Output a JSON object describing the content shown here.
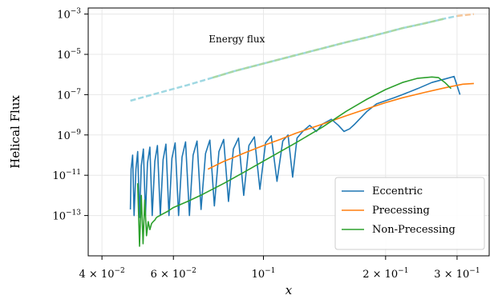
{
  "chart_data": {
    "type": "line",
    "xlabel": "x",
    "ylabel": "Helical Flux",
    "xscale": "log",
    "yscale": "log",
    "xlim": [
      0.037,
      0.36
    ],
    "ylim": [
      1e-15,
      0.002
    ],
    "grid": true,
    "legend_position": "bottom-right",
    "annotations": [
      {
        "text": "Energy flux",
        "x": 0.086,
        "y": 4e-05
      }
    ],
    "xticks": [
      {
        "value": 0.04,
        "base": "4 × 10",
        "exp": "−2"
      },
      {
        "value": 0.06,
        "base": "6 × 10",
        "exp": "−2"
      },
      {
        "value": 0.1,
        "base": "10",
        "exp": "−1"
      },
      {
        "value": 0.2,
        "base": "2 × 10",
        "exp": "−1"
      },
      {
        "value": 0.3,
        "base": "3 × 10",
        "exp": "−1"
      }
    ],
    "yticks": [
      {
        "value": 0.001,
        "base": "10",
        "exp": "−3"
      },
      {
        "value": 1e-05,
        "base": "10",
        "exp": "−5"
      },
      {
        "value": 1e-07,
        "base": "10",
        "exp": "−7"
      },
      {
        "value": 1e-09,
        "base": "10",
        "exp": "−9"
      },
      {
        "value": 1e-11,
        "base": "10",
        "exp": "−11"
      },
      {
        "value": 1e-13,
        "base": "10",
        "exp": "−13"
      }
    ],
    "series": [
      {
        "name": "Eccentric",
        "color": "#1f77b4",
        "style": "solid",
        "x": [
          0.047,
          0.0472,
          0.0476,
          0.048,
          0.0485,
          0.049,
          0.0495,
          0.05,
          0.0506,
          0.0512,
          0.0518,
          0.0525,
          0.0532,
          0.054,
          0.0548,
          0.0557,
          0.0566,
          0.0575,
          0.0585,
          0.0595,
          0.0606,
          0.0618,
          0.063,
          0.0643,
          0.0657,
          0.0671,
          0.0686,
          0.0702,
          0.072,
          0.0738,
          0.0757,
          0.0777,
          0.0798,
          0.082,
          0.0843,
          0.0868,
          0.0894,
          0.0921,
          0.095,
          0.098,
          0.1012,
          0.1045,
          0.108,
          0.1116,
          0.115,
          0.118,
          0.121,
          0.125,
          0.13,
          0.135,
          0.14,
          0.147,
          0.153,
          0.158,
          0.163,
          0.168,
          0.18,
          0.19,
          0.2,
          0.21,
          0.22,
          0.24,
          0.26,
          0.28,
          0.295,
          0.305
        ],
        "y": [
          2e-13,
          2e-11,
          1e-10,
          1e-13,
          2e-11,
          1.5e-10,
          8e-14,
          3e-11,
          2e-10,
          1e-13,
          4e-11,
          2.5e-10,
          1e-13,
          5e-11,
          3e-10,
          1e-13,
          6e-11,
          3.5e-10,
          1e-13,
          7e-11,
          4e-10,
          1e-13,
          8e-11,
          4.5e-10,
          1e-13,
          1e-10,
          5e-10,
          2e-13,
          1.2e-10,
          5.5e-10,
          3e-13,
          1.5e-10,
          6e-10,
          5e-13,
          2e-10,
          7e-10,
          1e-12,
          3e-10,
          8e-10,
          2e-12,
          4e-10,
          9e-10,
          5e-12,
          5e-10,
          1e-09,
          8e-12,
          7e-10,
          1.5e-09,
          3e-09,
          1.5e-09,
          3.5e-09,
          6e-09,
          3e-09,
          1.5e-09,
          2e-09,
          3.5e-09,
          1.5e-08,
          3.5e-08,
          5e-08,
          7e-08,
          1e-07,
          2e-07,
          4e-07,
          6e-07,
          8e-07,
          1e-07
        ]
      },
      {
        "name": "Precessing",
        "color": "#ff7f0e",
        "style": "solid",
        "x": [
          0.073,
          0.076,
          0.08,
          0.085,
          0.09,
          0.1,
          0.11,
          0.12,
          0.14,
          0.16,
          0.18,
          0.2,
          0.22,
          0.25,
          0.28,
          0.31,
          0.33
        ],
        "y": [
          2e-11,
          3e-11,
          5e-11,
          8e-11,
          1.3e-10,
          3e-10,
          6e-10,
          1.2e-09,
          3.5e-09,
          9e-09,
          2e-08,
          4e-08,
          7e-08,
          1.3e-07,
          2.2e-07,
          3.3e-07,
          3.6e-07
        ]
      },
      {
        "name": "Non-Precessing",
        "color": "#2ca02c",
        "style": "solid",
        "x": [
          0.049,
          0.0495,
          0.05,
          0.0505,
          0.051,
          0.0515,
          0.052,
          0.0525,
          0.053,
          0.0535,
          0.054,
          0.0545,
          0.055,
          0.056,
          0.058,
          0.06,
          0.065,
          0.07,
          0.08,
          0.09,
          0.1,
          0.12,
          0.14,
          0.16,
          0.18,
          0.2,
          0.22,
          0.24,
          0.26,
          0.27,
          0.28,
          0.29
        ],
        "y": [
          4e-12,
          3e-15,
          1e-12,
          4e-15,
          6e-13,
          1e-14,
          5e-14,
          2e-14,
          4e-14,
          5e-14,
          6e-14,
          8e-14,
          9e-14,
          1.1e-13,
          1.6e-13,
          2.5e-13,
          5e-13,
          1e-12,
          4e-12,
          1.5e-11,
          5e-11,
          4e-10,
          2.5e-09,
          1.5e-08,
          6e-08,
          1.8e-07,
          4e-07,
          6.5e-07,
          7.5e-07,
          7e-07,
          4e-07,
          2e-07
        ]
      },
      {
        "name": "",
        "color": "#9fd8e2",
        "style": "dashed",
        "x": [
          0.047,
          0.055,
          0.065,
          0.075,
          0.085,
          0.1,
          0.12,
          0.14,
          0.16,
          0.18,
          0.2,
          0.22,
          0.25,
          0.28,
          0.3
        ],
        "y": [
          5e-08,
          1.2e-07,
          3e-07,
          7e-07,
          1.5e-06,
          3.5e-06,
          9e-06,
          2e-05,
          4e-05,
          7e-05,
          0.00012,
          0.0002,
          0.00035,
          0.0006,
          0.0008
        ]
      },
      {
        "name": "",
        "color": "#f6c79b",
        "style": "dashed",
        "x": [
          0.3,
          0.31,
          0.32,
          0.33
        ],
        "y": [
          0.0008,
          0.00087,
          0.00093,
          0.001
        ]
      },
      {
        "name": "",
        "color": "#a9d8a3",
        "style": "dashed",
        "x": [
          0.075,
          0.085,
          0.1,
          0.12,
          0.14,
          0.16,
          0.18,
          0.2,
          0.22,
          0.25,
          0.28
        ],
        "y": [
          7e-07,
          1.5e-06,
          3.5e-06,
          9e-06,
          2e-05,
          4e-05,
          7e-05,
          0.00012,
          0.0002,
          0.00035,
          0.0006
        ]
      }
    ]
  }
}
